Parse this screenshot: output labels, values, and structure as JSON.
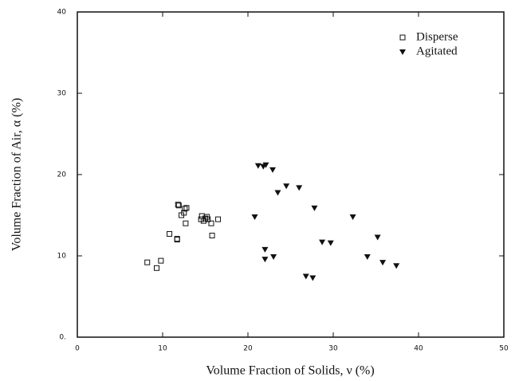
{
  "chart_data": {
    "type": "scatter",
    "xlabel": "Volume Fraction of Solids, ν (%)",
    "ylabel": "Volume Fraction of Air, α (%)",
    "xlim": [
      0,
      50
    ],
    "ylim": [
      0,
      40
    ],
    "xticks": [
      0,
      10,
      20,
      30,
      40,
      50
    ],
    "yticks": [
      {
        "value": 0,
        "label": "0."
      },
      10,
      20,
      30,
      40
    ],
    "legend": "upper right",
    "series": [
      {
        "name": "Disperse",
        "marker": "square",
        "color": "#111111",
        "x": [
          8.2,
          9.3,
          9.8,
          10.8,
          11.7,
          11.7,
          11.8,
          11.9,
          12.2,
          12.5,
          12.6,
          12.8,
          12.7,
          14.6,
          14.8,
          15.0,
          15.2,
          15.3,
          15.7,
          15.8,
          16.5,
          14.5
        ],
        "values": [
          9.2,
          8.5,
          9.4,
          12.7,
          12.1,
          12.0,
          16.3,
          16.2,
          15.0,
          15.3,
          15.8,
          15.9,
          14.0,
          14.9,
          14.3,
          14.6,
          14.8,
          14.5,
          14.0,
          12.5,
          14.5,
          14.5
        ]
      },
      {
        "name": "Agitated",
        "marker": "triangle-down",
        "color": "#111111",
        "x": [
          20.8,
          21.2,
          21.8,
          22.1,
          22.0,
          22.0,
          22.9,
          23.0,
          23.5,
          24.5,
          26.0,
          26.8,
          27.6,
          27.8,
          28.7,
          29.7,
          32.3,
          34.0,
          35.2,
          35.8,
          37.4
        ],
        "values": [
          14.8,
          21.1,
          21.0,
          21.2,
          10.8,
          9.6,
          20.6,
          9.9,
          17.8,
          18.6,
          18.4,
          7.5,
          7.3,
          15.9,
          11.7,
          11.6,
          14.8,
          9.9,
          12.3,
          9.2,
          8.8
        ]
      }
    ]
  }
}
